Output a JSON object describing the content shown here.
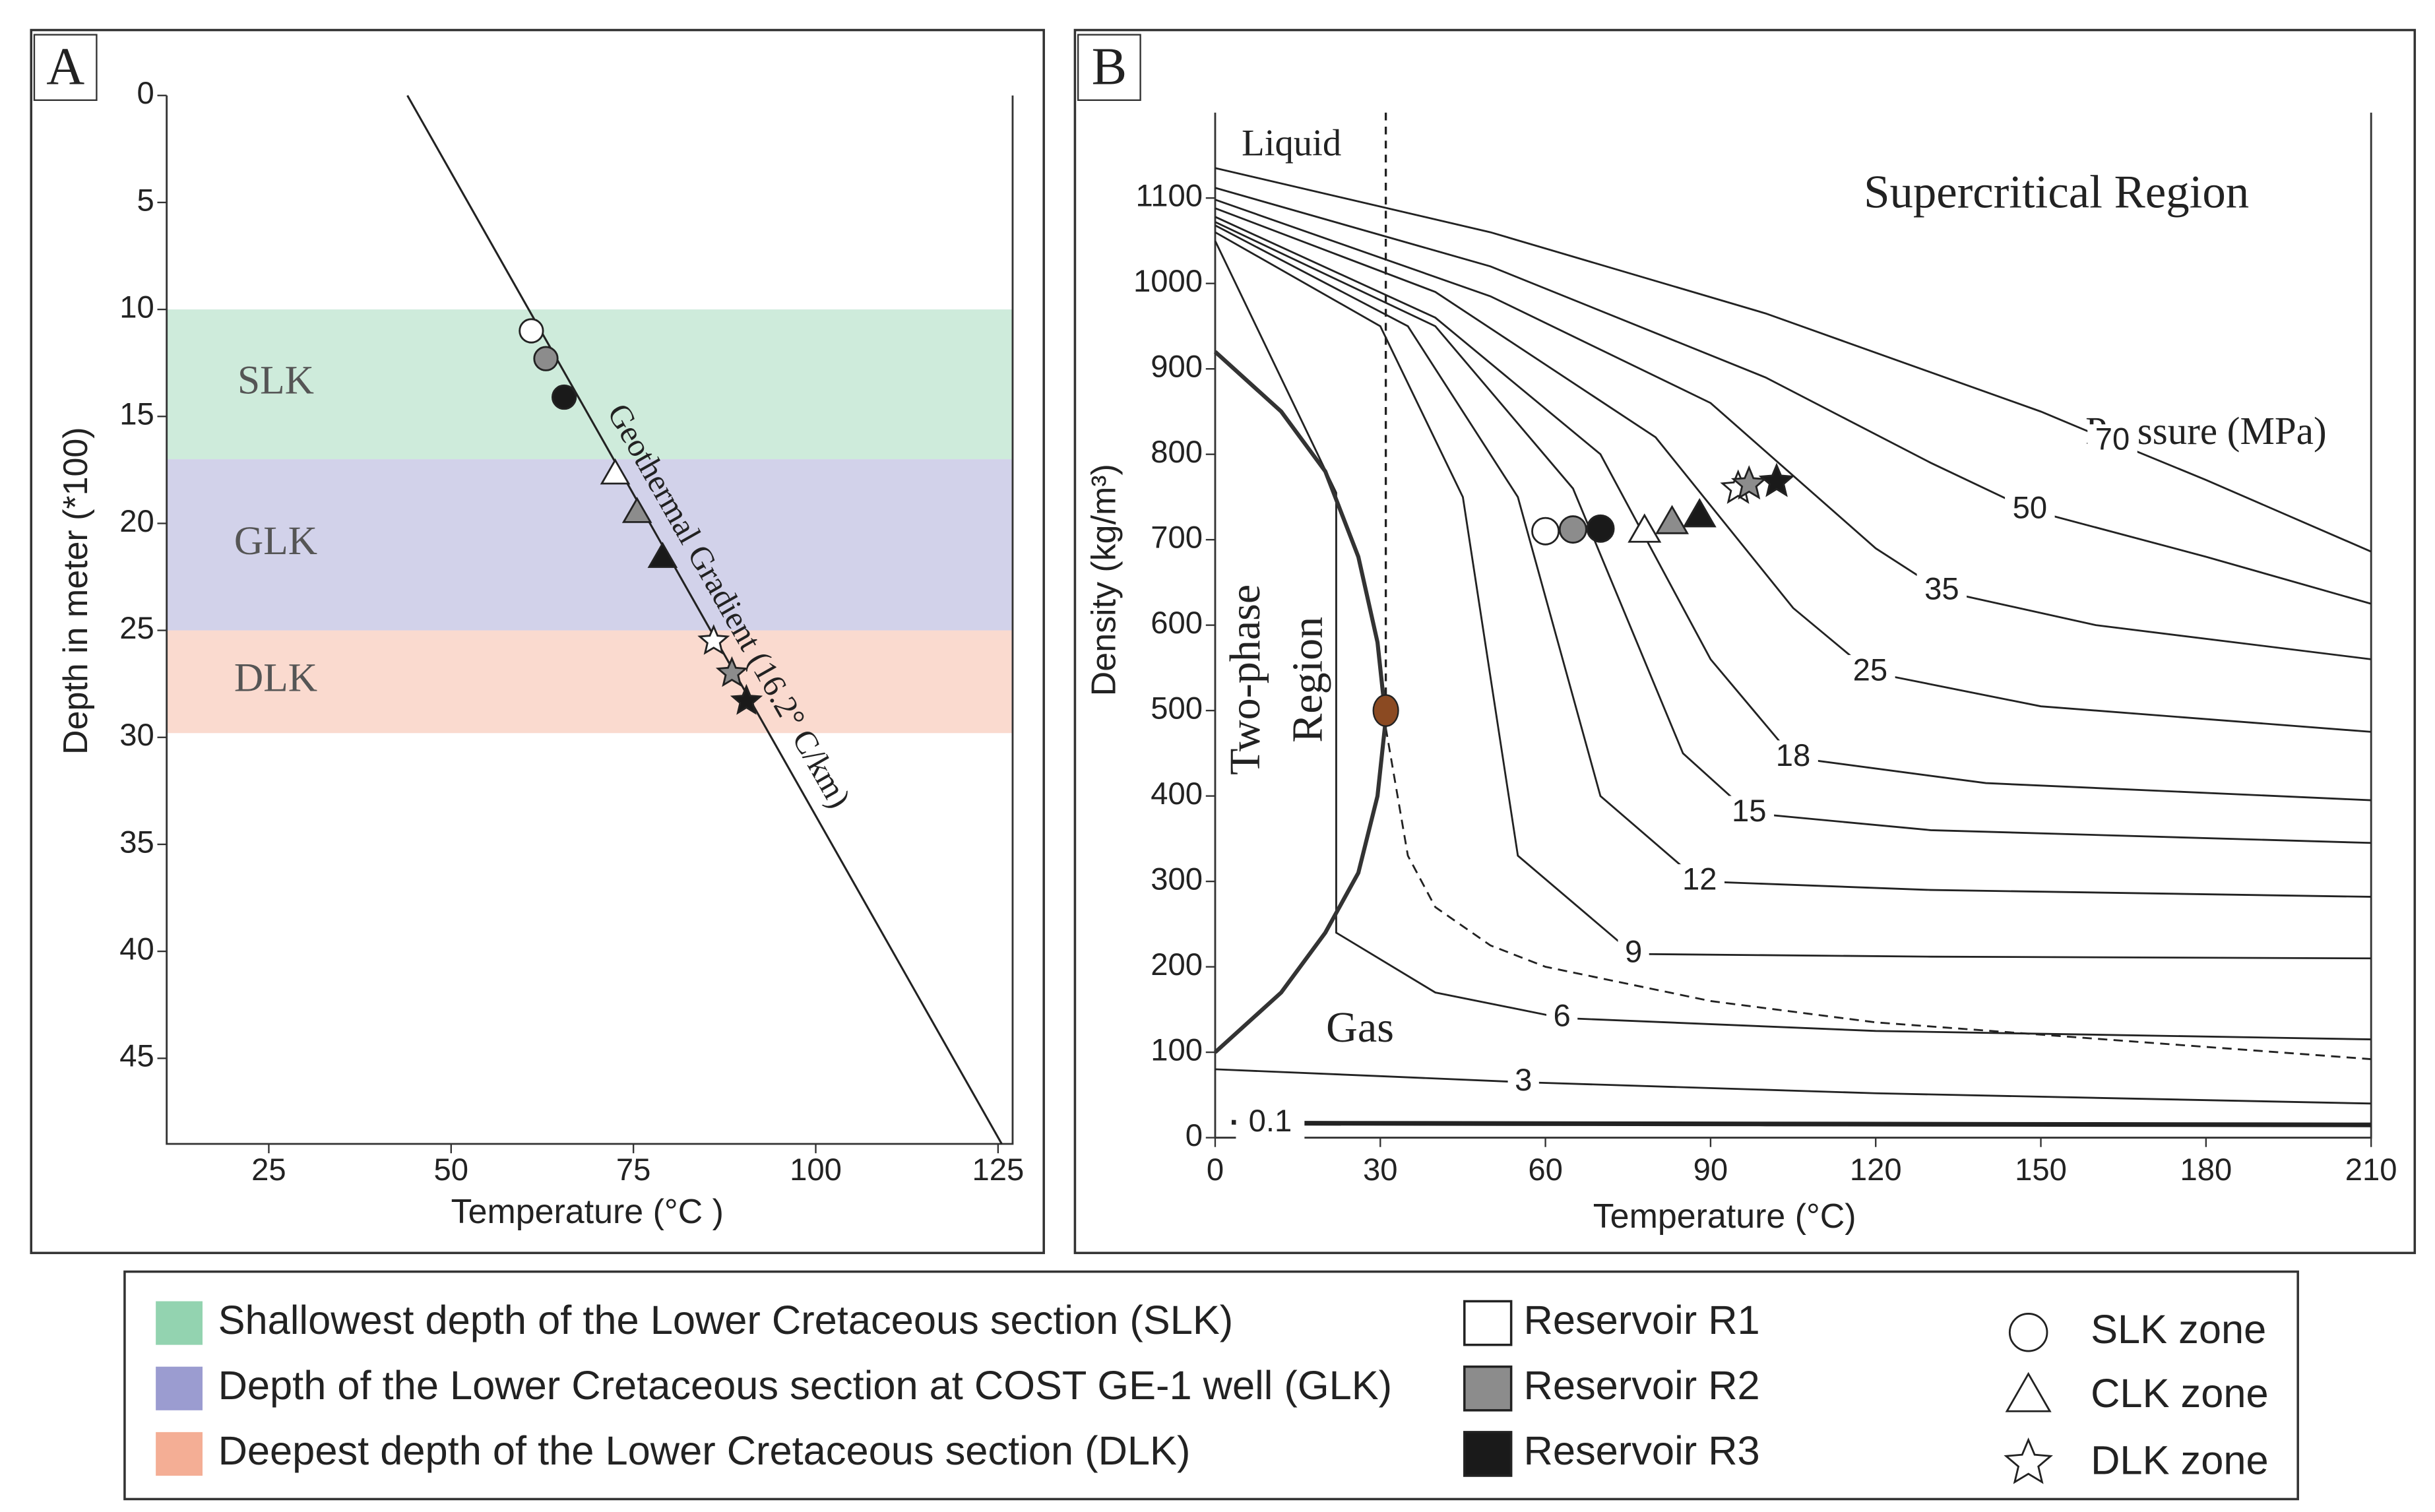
{
  "chart_data": [
    {
      "type": "scatter",
      "panel": "A",
      "x_label": "Temperature (°C )",
      "y_label": "Depth in meter (*100)",
      "xlim": [
        11,
        127
      ],
      "ylim": [
        0,
        49
      ],
      "y_inverted": true,
      "xticks": [
        25,
        50,
        75,
        100,
        125
      ],
      "yticks": [
        0,
        5,
        10,
        15,
        20,
        25,
        30,
        35,
        40,
        45
      ],
      "bands": [
        {
          "label": "SLK",
          "legend_label": "Shallowest depth of the Lower Cretaceous section (SLK)",
          "from": 10,
          "to": 17,
          "color": "#93d3b0"
        },
        {
          "label": "GLK",
          "legend_label": "Depth of the Lower Cretaceous section at COST GE-1 well (GLK)",
          "from": 17,
          "to": 25,
          "color": "#9b9cd0"
        },
        {
          "label": "DLK",
          "legend_label": "Deepest depth of the Lower Cretaceous section (DLK)",
          "from": 25,
          "to": 29.8,
          "color": "#f4ae95"
        }
      ],
      "gradient": {
        "label": "Geothermal Gradient (16.2° C/km)",
        "x": [
          44,
          125.5
        ],
        "y": [
          0,
          49
        ]
      },
      "points": {
        "x": [
          61,
          63,
          65.5,
          72.5,
          75.5,
          79,
          86,
          88.5,
          90.5
        ],
        "y": [
          11,
          12.3,
          14.1,
          17.7,
          19.5,
          21.6,
          25.5,
          27,
          28.3
        ],
        "shapes": [
          "circle",
          "circle",
          "circle",
          "triangle",
          "triangle",
          "triangle",
          "star",
          "star",
          "star"
        ],
        "colors": [
          "#ffffff",
          "#8c8c8c",
          "#1a1a1a",
          "#ffffff",
          "#8c8c8c",
          "#1a1a1a",
          "#ffffff",
          "#8c8c8c",
          "#1a1a1a"
        ]
      }
    },
    {
      "type": "line",
      "panel": "B",
      "x_label": "Temperature (°C)",
      "y_label": "Density (kg/m³)",
      "xlim": [
        0,
        210
      ],
      "ylim": [
        0,
        1200
      ],
      "xticks": [
        0,
        30,
        60,
        90,
        120,
        150,
        180,
        210
      ],
      "yticks": [
        0,
        100,
        200,
        300,
        400,
        500,
        600,
        700,
        800,
        900,
        1000,
        1100
      ],
      "liquid_label": "Liquid",
      "supercritical_label": "Supercritical Region",
      "pressure_label": "Pressure (MPa)",
      "two_phase_label": [
        "Two-phase",
        "Region"
      ],
      "gas_label": "Gas",
      "series": [
        {
          "name": "70",
          "x": [
            0,
            50,
            100,
            150,
            163,
            180,
            210
          ],
          "y": [
            1135,
            1060,
            965,
            850,
            815,
            770,
            686
          ]
        },
        {
          "name": "50",
          "x": [
            0,
            50,
            100,
            130,
            148,
            180,
            210
          ],
          "y": [
            1112,
            1020,
            890,
            790,
            735,
            680,
            625
          ]
        },
        {
          "name": "35",
          "x": [
            0,
            50,
            90,
            120,
            132,
            160,
            210
          ],
          "y": [
            1098,
            985,
            860,
            690,
            640,
            600,
            560
          ]
        },
        {
          "name": "25",
          "x": [
            0,
            40,
            80,
            105,
            119,
            150,
            210
          ],
          "y": [
            1088,
            990,
            820,
            620,
            545,
            505,
            475
          ]
        },
        {
          "name": "18",
          "x": [
            0,
            40,
            70,
            90,
            105,
            140,
            210
          ],
          "y": [
            1078,
            960,
            800,
            560,
            445,
            415,
            395
          ]
        },
        {
          "name": "15",
          "x": [
            0,
            40,
            65,
            85,
            97,
            130,
            210
          ],
          "y": [
            1072,
            950,
            760,
            450,
            380,
            360,
            345
          ]
        },
        {
          "name": "12",
          "x": [
            0,
            35,
            55,
            70,
            88,
            130,
            210
          ],
          "y": [
            1068,
            950,
            750,
            400,
            300,
            290,
            282
          ]
        },
        {
          "name": "9",
          "x": [
            0,
            30,
            45,
            55,
            76,
            130,
            210
          ],
          "y": [
            1060,
            950,
            750,
            330,
            215,
            212,
            210
          ]
        },
        {
          "name": "6",
          "x": [
            0,
            22,
            22,
            40,
            63,
            120,
            210
          ],
          "y": [
            1050,
            755,
            240,
            170,
            140,
            125,
            115
          ]
        },
        {
          "name": "3",
          "x": [
            0,
            30,
            56,
            120,
            210
          ],
          "y": [
            80,
            72,
            65,
            52,
            40
          ]
        },
        {
          "name": "0.1",
          "x": [
            3,
            10,
            100,
            210
          ],
          "y": [
            18,
            17,
            16,
            15
          ]
        },
        {
          "dashed": true,
          "x": [
            31,
            35,
            40,
            50,
            60,
            90,
            120,
            210
          ],
          "y": [
            480,
            330,
            270,
            225,
            200,
            160,
            135,
            92
          ]
        }
      ],
      "saturation_curve": {
        "x": [
          0,
          12,
          20,
          26,
          29.5,
          31,
          29.5,
          26,
          20,
          12,
          0
        ],
        "y": [
          100,
          170,
          240,
          310,
          400,
          490,
          580,
          680,
          780,
          850,
          920
        ]
      },
      "critical_point": {
        "x": 31,
        "y": 500,
        "color": "#8b4a22"
      },
      "points": {
        "x": [
          60,
          65,
          70,
          78,
          83,
          88,
          95,
          97,
          102
        ],
        "y": [
          710,
          712,
          713,
          710,
          720,
          728,
          760,
          765,
          768
        ],
        "shapes": [
          "circle",
          "circle",
          "circle",
          "triangle",
          "triangle",
          "triangle",
          "star",
          "star",
          "star"
        ],
        "colors": [
          "#ffffff",
          "#8c8c8c",
          "#1a1a1a",
          "#ffffff",
          "#8c8c8c",
          "#1a1a1a",
          "#ffffff",
          "#8c8c8c",
          "#1a1a1a"
        ]
      }
    }
  ],
  "panel_labels": [
    "A",
    "B"
  ],
  "legend": {
    "reservoirs": [
      {
        "label": "Reservoir R1",
        "color": "#ffffff"
      },
      {
        "label": "Reservoir R2",
        "color": "#8c8c8c"
      },
      {
        "label": "Reservoir R3",
        "color": "#1a1a1a"
      }
    ],
    "zones": [
      {
        "label": "SLK zone",
        "shape": "circle"
      },
      {
        "label": "CLK zone",
        "shape": "triangle"
      },
      {
        "label": "DLK zone",
        "shape": "star"
      }
    ]
  }
}
